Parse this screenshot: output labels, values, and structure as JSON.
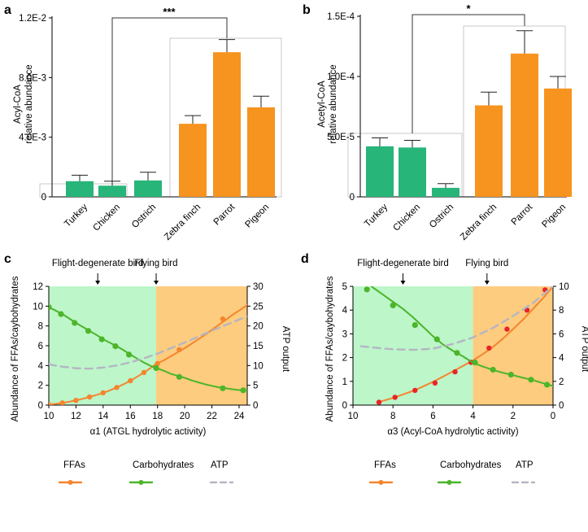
{
  "colors": {
    "green": "#27b57a",
    "orange": "#f6941f",
    "green_line": "#4cb52a",
    "orange_line": "#f5852e",
    "atp_line": "#b5b5c3",
    "bg_green": "#bcf6c9",
    "bg_orange": "#fdcc7e",
    "red_dot": "#e8242a"
  },
  "chart_data": [
    {
      "panel": "a",
      "type": "bar",
      "ylabel": "Acyl-CoA relative abundance",
      "ylabel_lines": [
        "Acyl-CoA",
        "relative abundance"
      ],
      "ylim": [
        0,
        0.012
      ],
      "yticks": [
        0,
        0.004,
        0.008,
        0.012
      ],
      "ytick_labels": [
        "0",
        "4.0E-3",
        "8.0E-3",
        "1.2E-2"
      ],
      "categories": [
        "Turkey",
        "Chicken",
        "Ostrich",
        "Zebra finch",
        "Parrot",
        "Pigeon"
      ],
      "groups": [
        "flight-degenerate",
        "flight-degenerate",
        "flight-degenerate",
        "flying",
        "flying",
        "flying"
      ],
      "values": [
        0.00105,
        0.00075,
        0.0011,
        0.0049,
        0.0097,
        0.006
      ],
      "errors": [
        0.0004,
        0.0003,
        0.00055,
        0.00055,
        0.00085,
        0.00075
      ],
      "significance": "***"
    },
    {
      "panel": "b",
      "type": "bar",
      "ylabel": "Acetyl-CoA relative abundance",
      "ylabel_lines": [
        "Acetyl-CoA",
        "relative abundance"
      ],
      "ylim": [
        0,
        0.00015
      ],
      "yticks": [
        0,
        5e-05,
        0.0001,
        0.00015
      ],
      "ytick_labels": [
        "0",
        "5.0E-5",
        "1.0E-4",
        "1.5E-4"
      ],
      "categories": [
        "Turkey",
        "Chicken",
        "Ostrich",
        "Zebra finch",
        "Parrot",
        "Pigeon"
      ],
      "groups": [
        "flight-degenerate",
        "flight-degenerate",
        "flight-degenerate",
        "flying",
        "flying",
        "flying"
      ],
      "values": [
        4.2e-05,
        4.1e-05,
        7.5e-06,
        7.6e-05,
        0.000119,
        9e-05
      ],
      "errors": [
        7e-06,
        6e-06,
        3.5e-06,
        1.1e-05,
        1.9e-05,
        1e-05
      ],
      "significance": "*"
    },
    {
      "panel": "c",
      "type": "line",
      "xlabel": "α1 (ATGL hydrolytic activity)",
      "ylabel": "Abundance of FFAs/caybohydrates",
      "y2label": "ATP output",
      "xlim": [
        10,
        24.6
      ],
      "xticks": [
        10,
        12,
        14,
        16,
        18,
        20,
        22,
        24
      ],
      "ylim": [
        0,
        12
      ],
      "yticks": [
        0,
        2,
        4,
        6,
        8,
        10,
        12
      ],
      "y2lim": [
        0,
        30
      ],
      "y2ticks": [
        0,
        5,
        10,
        15,
        20,
        25,
        30
      ],
      "region_split": 17.9,
      "annotations": [
        {
          "text": "Flight-degenerate bird",
          "x": 13.6
        },
        {
          "text": "Flying bird",
          "x": 17.9
        }
      ],
      "series": [
        {
          "name": "FFAs",
          "axis": "left",
          "style": "solid",
          "x": [
            10,
            10.5,
            11,
            11.5,
            12,
            12.5,
            13,
            13.5,
            14,
            14.5,
            15,
            15.5,
            16,
            16.5,
            17,
            17.5,
            17.9,
            18.5,
            19,
            19.5,
            20,
            20.5,
            21,
            21.5,
            22,
            22.5,
            23,
            23.5,
            24,
            24.6
          ],
          "y": [
            0.05,
            0.12,
            0.22,
            0.34,
            0.48,
            0.64,
            0.82,
            1.02,
            1.24,
            1.5,
            1.78,
            2.1,
            2.46,
            2.86,
            3.3,
            3.76,
            4.15,
            4.55,
            4.95,
            5.35,
            5.75,
            6.2,
            6.65,
            7.1,
            7.6,
            8.1,
            8.6,
            9.1,
            9.55,
            10.1
          ],
          "dots_x": [
            10,
            11,
            12,
            13,
            14,
            15,
            16,
            17,
            18,
            19.6,
            22.8
          ],
          "dots_y": [
            0.05,
            0.22,
            0.48,
            0.82,
            1.24,
            1.78,
            2.46,
            3.3,
            4.2,
            5.6,
            8.7
          ]
        },
        {
          "name": "Carbohydrates",
          "axis": "left",
          "style": "solid",
          "x": [
            10,
            10.5,
            11,
            11.5,
            12,
            12.5,
            13,
            13.5,
            14,
            14.5,
            15,
            15.5,
            16,
            16.5,
            17,
            17.5,
            17.9,
            18.5,
            19,
            19.5,
            20,
            20.5,
            21,
            21.5,
            22,
            22.5,
            23,
            23.5,
            24,
            24.6
          ],
          "y": [
            9.9,
            9.55,
            9.2,
            8.75,
            8.3,
            7.9,
            7.5,
            7.1,
            6.65,
            6.3,
            5.95,
            5.55,
            5.1,
            4.7,
            4.3,
            3.95,
            3.75,
            3.45,
            3.15,
            2.95,
            2.75,
            2.5,
            2.3,
            2.1,
            1.95,
            1.8,
            1.7,
            1.6,
            1.52,
            1.5
          ],
          "dots_x": [
            10,
            10.9,
            11.9,
            12.9,
            13.9,
            14.9,
            15.9,
            17.9,
            19.6,
            22.8,
            24.3
          ],
          "dots_y": [
            9.9,
            9.2,
            8.3,
            7.5,
            6.65,
            5.95,
            5.1,
            3.75,
            2.85,
            1.7,
            1.5
          ]
        },
        {
          "name": "ATP",
          "axis": "right",
          "style": "dashed",
          "x": [
            10,
            11,
            12,
            13,
            14,
            15,
            16,
            17,
            18,
            19,
            20,
            21,
            22,
            23,
            24,
            24.6
          ],
          "y": [
            10.3,
            9.7,
            9.3,
            9.2,
            9.5,
            10.0,
            10.8,
            11.8,
            13.0,
            14.4,
            15.8,
            17.3,
            18.8,
            20.2,
            21.6,
            22.4
          ]
        }
      ]
    },
    {
      "panel": "d",
      "type": "line",
      "xlabel": "α3 (Acyl-CoA hydrolytic activity)",
      "ylabel": "Abundance of FFAs/caybohydrates",
      "y2label": "ATP output",
      "xlim": [
        10,
        0
      ],
      "xticks": [
        10,
        8,
        6,
        4,
        2,
        0
      ],
      "ylim": [
        0,
        5
      ],
      "yticks": [
        0,
        1,
        2,
        3,
        4,
        5
      ],
      "y2lim": [
        0,
        10
      ],
      "y2ticks": [
        0,
        2,
        4,
        6,
        8,
        10
      ],
      "region_split": 4.0,
      "annotations": [
        {
          "text": "Flight-degenerate bird",
          "x": 7.5
        },
        {
          "text": "Flying bird",
          "x": 3.3
        }
      ],
      "series": [
        {
          "name": "FFAs",
          "axis": "left",
          "style": "solid",
          "x": [
            8.8,
            8.5,
            8,
            7.5,
            7,
            6.5,
            6,
            5.5,
            5,
            4.5,
            4.0,
            3.5,
            3,
            2.5,
            2,
            1.5,
            1,
            0.5,
            0
          ],
          "y": [
            0.1,
            0.18,
            0.3,
            0.45,
            0.6,
            0.78,
            0.98,
            1.2,
            1.42,
            1.65,
            1.88,
            2.15,
            2.45,
            2.8,
            3.2,
            3.6,
            4.05,
            4.5,
            5.0
          ],
          "dots_x": [
            8.7,
            7.9,
            6.9,
            5.9,
            4.9,
            4.1,
            3.2,
            2.3,
            1.3,
            0.4
          ],
          "dots_y": [
            0.12,
            0.33,
            0.62,
            0.93,
            1.4,
            1.8,
            2.4,
            3.2,
            4.0,
            4.85
          ]
        },
        {
          "name": "Carbohydrates",
          "axis": "left",
          "style": "solid",
          "x": [
            9.4,
            9,
            8.5,
            8,
            7.5,
            7,
            6.5,
            6,
            5.5,
            5,
            4.5,
            4.0,
            3.5,
            3,
            2.5,
            2,
            1.5,
            1,
            0.5,
            0
          ],
          "y": [
            5.2,
            4.95,
            4.65,
            4.35,
            4.05,
            3.7,
            3.3,
            2.9,
            2.55,
            2.28,
            2.05,
            1.78,
            1.62,
            1.48,
            1.36,
            1.26,
            1.15,
            1.05,
            0.92,
            0.8
          ],
          "dots_x": [
            9.3,
            8.0,
            6.9,
            5.8,
            4.8,
            3.9,
            3.0,
            2.1,
            1.1,
            0.3
          ],
          "dots_y": [
            4.87,
            4.2,
            3.37,
            2.77,
            2.2,
            1.79,
            1.49,
            1.28,
            1.07,
            0.86
          ]
        },
        {
          "name": "ATP",
          "axis": "right",
          "style": "dashed",
          "x": [
            9.6,
            9,
            8,
            7,
            6,
            5,
            4,
            3,
            2,
            1,
            0
          ],
          "y": [
            4.95,
            4.85,
            4.7,
            4.65,
            4.75,
            5.15,
            5.7,
            6.5,
            7.5,
            8.6,
            10.0
          ]
        }
      ]
    }
  ],
  "legend": [
    {
      "name": "FFAs",
      "style": "solid"
    },
    {
      "name": "Carbohydrates",
      "style": "solid"
    },
    {
      "name": "ATP",
      "style": "dashed"
    }
  ]
}
